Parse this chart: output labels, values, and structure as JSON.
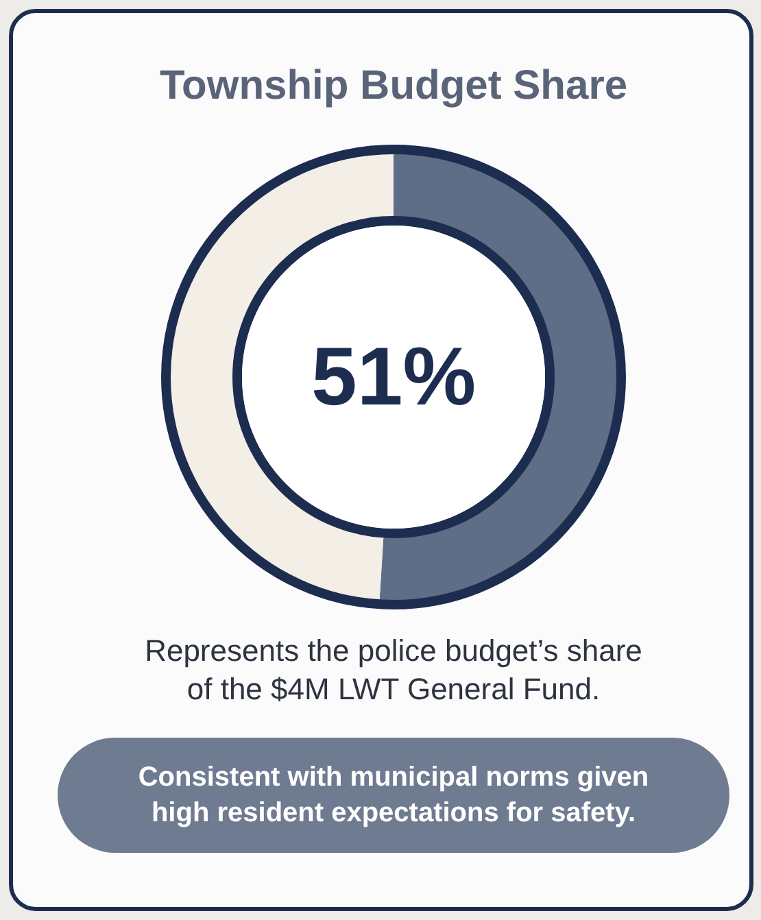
{
  "chart_data": {
    "type": "donut",
    "title": "Township Budget Share",
    "categories": [
      null,
      null
    ],
    "values": [
      51,
      49
    ],
    "colors": [
      "#5f6e87",
      "#f3efe7"
    ],
    "value_labels": [
      "51%",
      null
    ],
    "annotations": [
      "Represents the police budget’s share of the $4M LWT General Fund.",
      "Consistent with municipal norms given high resident expectations for safety."
    ]
  }
}
